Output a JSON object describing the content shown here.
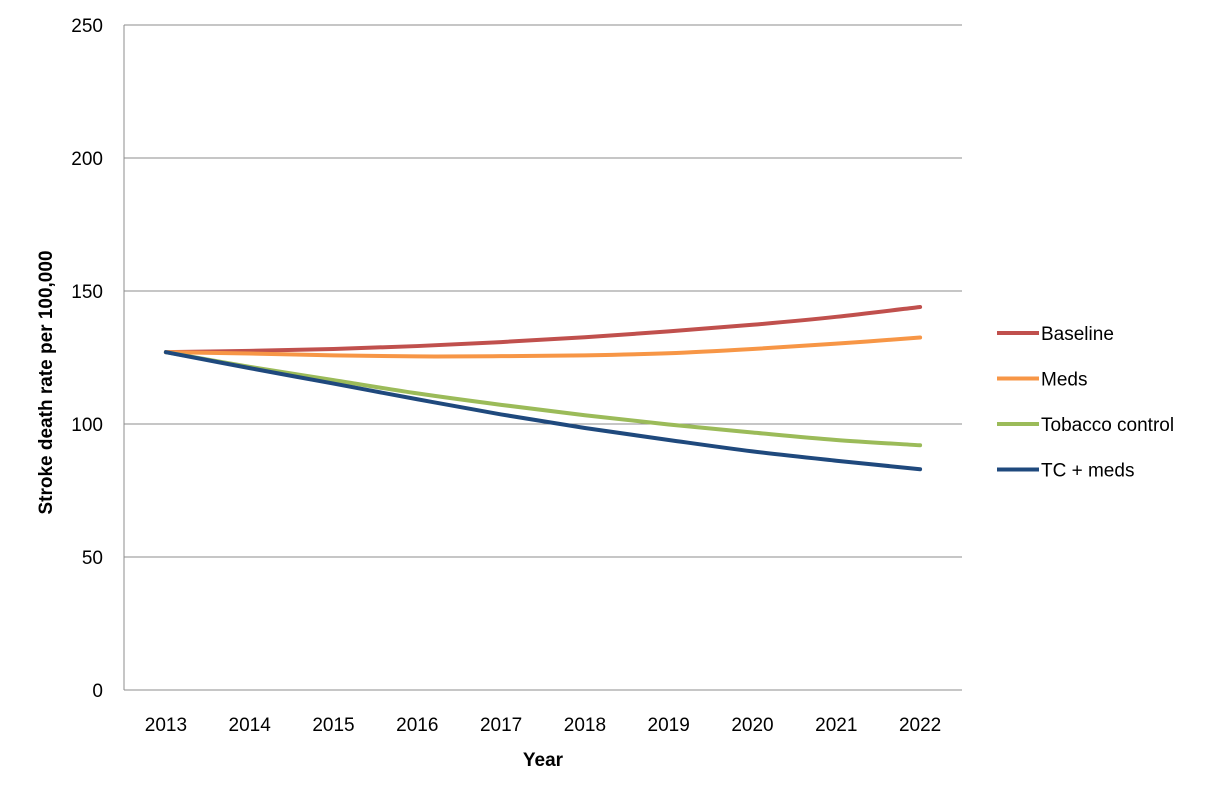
{
  "chart_data": {
    "type": "line",
    "title": "",
    "xlabel": "Year",
    "ylabel": "Stroke death rate per 100,000",
    "ylim": [
      0,
      250
    ],
    "yticks": [
      0,
      50,
      100,
      150,
      200,
      250
    ],
    "grid": "horizontal",
    "legend_position": "right",
    "categories": [
      "2013",
      "2014",
      "2015",
      "2016",
      "2017",
      "2018",
      "2019",
      "2020",
      "2021",
      "2022"
    ],
    "series": [
      {
        "name": "Baseline",
        "color": "#c0504d",
        "values": [
          127,
          127.5,
          128.2,
          129.3,
          130.8,
          132.6,
          134.8,
          137.3,
          140.3,
          144
        ]
      },
      {
        "name": "Meds",
        "color": "#f79646",
        "values": [
          127,
          126.5,
          125.8,
          125.4,
          125.5,
          125.8,
          126.6,
          128.2,
          130.2,
          132.5
        ]
      },
      {
        "name": "Tobacco control",
        "color": "#9bbb59",
        "values": [
          127,
          121.5,
          116.5,
          111.5,
          107.2,
          103.3,
          99.8,
          96.8,
          94.0,
          92.0
        ]
      },
      {
        "name": "TC + meds",
        "color": "#1f497d",
        "values": [
          127,
          121.0,
          115.2,
          109.3,
          103.6,
          98.5,
          94.0,
          89.7,
          86.2,
          83.0
        ]
      }
    ]
  }
}
